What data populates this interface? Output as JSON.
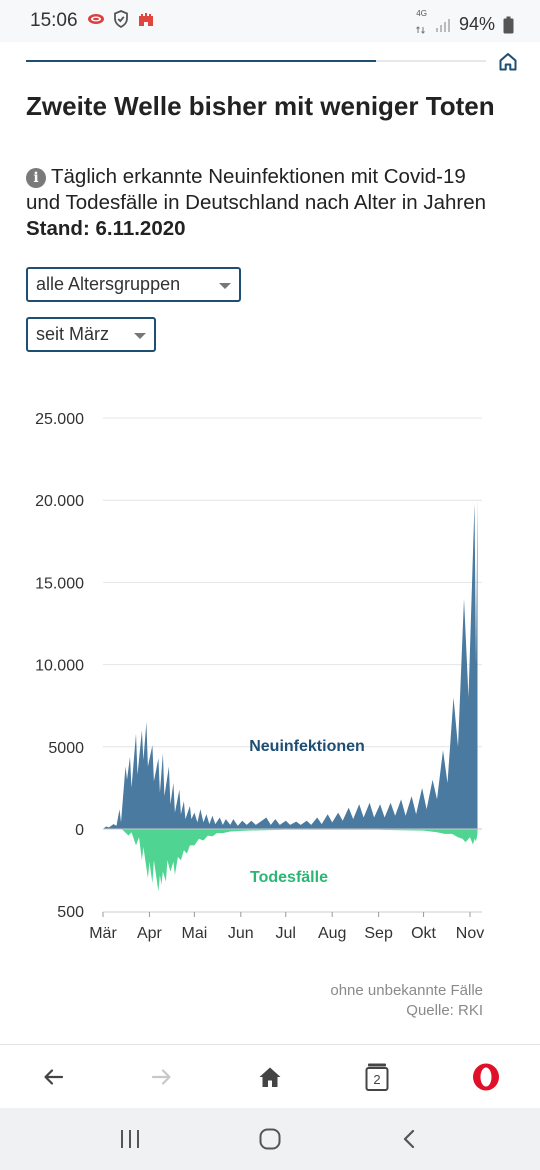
{
  "status_bar": {
    "time": "15:06",
    "network": "4G",
    "battery": "94%"
  },
  "article": {
    "title": "Zweite Welle bisher mit weniger Toten",
    "subtitle": "Täglich erkannte Neuinfektionen mit Covid-19 und Todesfälle in Deutschland nach Alter in Jahren",
    "stand": "Stand: 6.11.2020",
    "progress": 0.76
  },
  "filters": {
    "age_group": "alle Altersgruppen",
    "period": "seit März"
  },
  "chart_data": {
    "type": "area",
    "x_labels": [
      "Mär",
      "Apr",
      "Mai",
      "Jun",
      "Jul",
      "Aug",
      "Sep",
      "Okt",
      "Nov"
    ],
    "y_labels_positive": [
      "25.000",
      "20.000",
      "15.000",
      "10.000",
      "5000",
      "0"
    ],
    "y_labels_negative": [
      "500"
    ],
    "ylim_infections": [
      0,
      25000
    ],
    "ylim_deaths": [
      0,
      500
    ],
    "grid": true,
    "series": [
      {
        "name": "Neuinfektionen",
        "color": "#4a7aa0",
        "label_color": "#1d4e73",
        "points": [
          [
            "03-01",
            0
          ],
          [
            "03-03",
            150
          ],
          [
            "03-05",
            100
          ],
          [
            "03-08",
            300
          ],
          [
            "03-10",
            200
          ],
          [
            "03-12",
            1200
          ],
          [
            "03-13",
            400
          ],
          [
            "03-16",
            3800
          ],
          [
            "03-17",
            3000
          ],
          [
            "03-19",
            4400
          ],
          [
            "03-20",
            2500
          ],
          [
            "03-23",
            5800
          ],
          [
            "03-24",
            3300
          ],
          [
            "03-27",
            6000
          ],
          [
            "03-28",
            4200
          ],
          [
            "03-30",
            6500
          ],
          [
            "03-31",
            3800
          ],
          [
            "04-03",
            5100
          ],
          [
            "04-04",
            2900
          ],
          [
            "04-07",
            4300
          ],
          [
            "04-08",
            2200
          ],
          [
            "04-10",
            4600
          ],
          [
            "04-11",
            2000
          ],
          [
            "04-14",
            3800
          ],
          [
            "04-15",
            1500
          ],
          [
            "04-17",
            2800
          ],
          [
            "04-18",
            1000
          ],
          [
            "04-21",
            2400
          ],
          [
            "04-22",
            900
          ],
          [
            "04-24",
            1700
          ],
          [
            "04-25",
            600
          ],
          [
            "04-28",
            1400
          ],
          [
            "04-29",
            600
          ],
          [
            "05-01",
            1000
          ],
          [
            "05-03",
            400
          ],
          [
            "05-05",
            1200
          ],
          [
            "05-07",
            400
          ],
          [
            "05-09",
            900
          ],
          [
            "05-11",
            300
          ],
          [
            "05-13",
            800
          ],
          [
            "05-15",
            300
          ],
          [
            "05-18",
            700
          ],
          [
            "05-20",
            250
          ],
          [
            "05-22",
            600
          ],
          [
            "05-25",
            250
          ],
          [
            "05-27",
            600
          ],
          [
            "05-30",
            200
          ],
          [
            "06-02",
            500
          ],
          [
            "06-05",
            250
          ],
          [
            "06-08",
            500
          ],
          [
            "06-11",
            250
          ],
          [
            "06-15",
            500
          ],
          [
            "06-18",
            700
          ],
          [
            "06-21",
            250
          ],
          [
            "06-24",
            600
          ],
          [
            "06-27",
            250
          ],
          [
            "07-01",
            500
          ],
          [
            "07-04",
            250
          ],
          [
            "07-08",
            450
          ],
          [
            "07-11",
            250
          ],
          [
            "07-15",
            500
          ],
          [
            "07-18",
            250
          ],
          [
            "07-22",
            700
          ],
          [
            "07-25",
            300
          ],
          [
            "07-29",
            900
          ],
          [
            "08-01",
            400
          ],
          [
            "08-05",
            1000
          ],
          [
            "08-08",
            500
          ],
          [
            "08-12",
            1300
          ],
          [
            "08-15",
            600
          ],
          [
            "08-19",
            1500
          ],
          [
            "08-22",
            700
          ],
          [
            "08-26",
            1600
          ],
          [
            "08-29",
            700
          ],
          [
            "09-02",
            1500
          ],
          [
            "09-05",
            700
          ],
          [
            "09-09",
            1600
          ],
          [
            "09-12",
            800
          ],
          [
            "09-16",
            1800
          ],
          [
            "09-19",
            800
          ],
          [
            "09-23",
            2000
          ],
          [
            "09-26",
            900
          ],
          [
            "09-30",
            2500
          ],
          [
            "10-03",
            1200
          ],
          [
            "10-07",
            3000
          ],
          [
            "10-10",
            1800
          ],
          [
            "10-14",
            4800
          ],
          [
            "10-17",
            2800
          ],
          [
            "10-21",
            8000
          ],
          [
            "10-24",
            5000
          ],
          [
            "10-28",
            14000
          ],
          [
            "10-31",
            8000
          ],
          [
            "11-04",
            19800
          ],
          [
            "11-05",
            10000
          ],
          [
            "11-06",
            20100
          ],
          [
            "11-06",
            0
          ]
        ]
      },
      {
        "name": "Todesfälle",
        "color": "#4fd491",
        "label_color": "#2bb673",
        "points": [
          [
            "03-01",
            0
          ],
          [
            "03-10",
            0
          ],
          [
            "03-14",
            5
          ],
          [
            "03-18",
            40
          ],
          [
            "03-20",
            20
          ],
          [
            "03-23",
            100
          ],
          [
            "03-25",
            50
          ],
          [
            "03-27",
            190
          ],
          [
            "03-28",
            110
          ],
          [
            "03-31",
            300
          ],
          [
            "04-01",
            200
          ],
          [
            "04-03",
            330
          ],
          [
            "04-04",
            190
          ],
          [
            "04-07",
            380
          ],
          [
            "04-08",
            280
          ],
          [
            "04-09",
            340
          ],
          [
            "04-10",
            260
          ],
          [
            "04-12",
            320
          ],
          [
            "04-13",
            190
          ],
          [
            "04-15",
            260
          ],
          [
            "04-17",
            200
          ],
          [
            "04-18",
            280
          ],
          [
            "04-20",
            170
          ],
          [
            "04-22",
            190
          ],
          [
            "04-24",
            130
          ],
          [
            "04-26",
            150
          ],
          [
            "04-28",
            100
          ],
          [
            "05-01",
            100
          ],
          [
            "05-04",
            60
          ],
          [
            "05-07",
            70
          ],
          [
            "05-10",
            40
          ],
          [
            "05-13",
            45
          ],
          [
            "05-16",
            25
          ],
          [
            "05-20",
            25
          ],
          [
            "05-25",
            15
          ],
          [
            "06-05",
            10
          ],
          [
            "07-01",
            5
          ],
          [
            "08-01",
            4
          ],
          [
            "09-01",
            5
          ],
          [
            "10-01",
            10
          ],
          [
            "10-10",
            20
          ],
          [
            "10-15",
            30
          ],
          [
            "10-20",
            30
          ],
          [
            "10-24",
            50
          ],
          [
            "10-27",
            60
          ],
          [
            "10-29",
            80
          ],
          [
            "11-01",
            50
          ],
          [
            "11-03",
            95
          ],
          [
            "11-04",
            60
          ],
          [
            "11-05",
            75
          ],
          [
            "11-06",
            30
          ],
          [
            "11-06",
            0
          ]
        ]
      }
    ]
  },
  "notes": {
    "unknown": "ohne unbekannte Fälle",
    "source": "Quelle: RKI"
  },
  "browser_nav": {
    "tab_count": "2"
  },
  "icons": {
    "home": "home-icon",
    "info": "info-icon",
    "back": "arrow-left-icon",
    "forward": "arrow-right-icon",
    "tabs": "tabs-icon",
    "opera": "opera-logo-icon",
    "recent": "recent-apps-icon",
    "sys_home": "circle-home-icon",
    "sys_back": "chevron-left-icon"
  }
}
